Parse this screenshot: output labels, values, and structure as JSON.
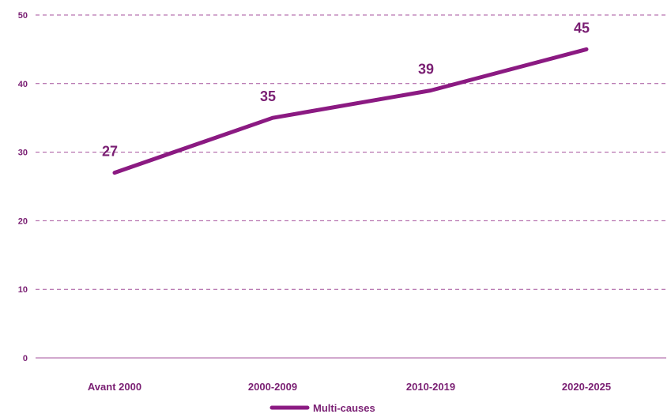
{
  "chart_data": {
    "type": "line",
    "title": "",
    "xlabel": "",
    "ylabel": "",
    "categories": [
      "Avant 2000",
      "2000-2009",
      "2010-2019",
      "2020-2025"
    ],
    "series": [
      {
        "name": "Multi-causes",
        "values": [
          27,
          35,
          39,
          45
        ],
        "color": "#8b1a82"
      }
    ],
    "ylim": [
      0,
      50
    ],
    "yticks": [
      "0",
      "10",
      "20",
      "30",
      "40",
      "50"
    ],
    "grid": "horizontal dashed",
    "gridColor": "#a4509c",
    "textColor": "#7a1f73",
    "legend_position": "bottom"
  }
}
